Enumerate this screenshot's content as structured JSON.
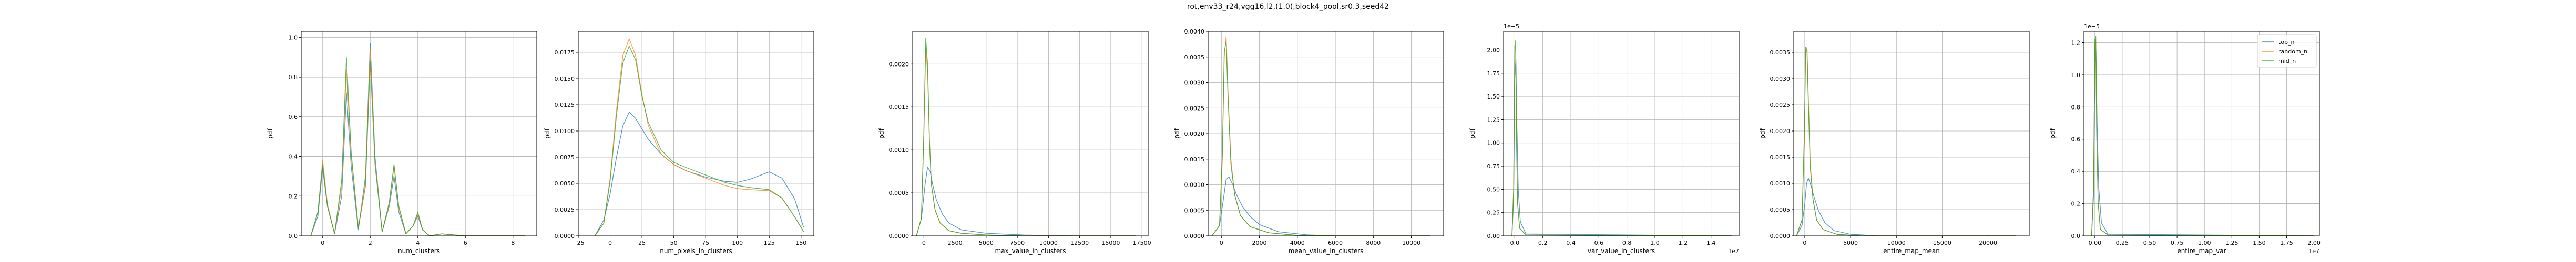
{
  "figure": {
    "title": "rot,env33_r24,vgg16,l2,(1.0),block4_pool,sr0.3,seed42"
  },
  "colors": {
    "top_n": "#1f77b4",
    "random_n": "#ff7f0e",
    "mid_n": "#2ca02c"
  },
  "legend": {
    "placement": "upper-right of last panel",
    "entries": [
      "top_n",
      "random_n",
      "mid_n"
    ]
  },
  "chart_data": [
    {
      "type": "line",
      "xlabel": "num_clusters",
      "ylabel": "pdf",
      "xlim": [
        -0.9,
        9.0
      ],
      "ylim": [
        0,
        1.03
      ],
      "xticks": [
        0,
        2,
        4,
        6,
        8
      ],
      "xticklabels": [
        "0",
        "2",
        "4",
        "6",
        "8"
      ],
      "yticks": [
        0.0,
        0.2,
        0.4,
        0.6,
        0.8,
        1.0
      ],
      "yticklabels": [
        "0.0",
        "0.2",
        "0.4",
        "0.6",
        "0.8",
        "1.0"
      ],
      "grid": true,
      "series": [
        {
          "key": "top_n",
          "x": [
            -0.5,
            -0.2,
            0,
            0.2,
            0.5,
            0.8,
            1,
            1.2,
            1.5,
            1.8,
            2,
            2.2,
            2.5,
            2.8,
            3,
            3.2,
            3.5,
            3.8,
            4,
            4.2,
            4.5,
            5,
            6,
            8.5
          ],
          "y": [
            0,
            0.1,
            0.34,
            0.15,
            0.01,
            0.2,
            0.72,
            0.35,
            0.03,
            0.3,
            0.97,
            0.4,
            0.02,
            0.15,
            0.3,
            0.12,
            0.01,
            0.05,
            0.1,
            0.03,
            0,
            0.01,
            0,
            0
          ]
        },
        {
          "key": "random_n",
          "x": [
            -0.5,
            -0.2,
            0,
            0.2,
            0.5,
            0.8,
            1,
            1.2,
            1.5,
            1.8,
            2,
            2.2,
            2.5,
            2.8,
            3,
            3.2,
            3.5,
            3.8,
            4,
            4.2,
            4.5,
            5,
            6,
            8.5
          ],
          "y": [
            0,
            0.12,
            0.38,
            0.16,
            0.01,
            0.25,
            0.84,
            0.4,
            0.04,
            0.28,
            0.94,
            0.38,
            0.02,
            0.16,
            0.35,
            0.14,
            0.01,
            0.05,
            0.11,
            0.03,
            0,
            0.01,
            0,
            0
          ]
        },
        {
          "key": "mid_n",
          "x": [
            -0.5,
            -0.2,
            0,
            0.2,
            0.5,
            0.8,
            1,
            1.2,
            1.5,
            1.8,
            2,
            2.2,
            2.5,
            2.8,
            3,
            3.2,
            3.5,
            3.8,
            4,
            4.2,
            4.5,
            5,
            6,
            8.5
          ],
          "y": [
            0,
            0.12,
            0.36,
            0.15,
            0.01,
            0.28,
            0.9,
            0.42,
            0.04,
            0.25,
            0.88,
            0.36,
            0.02,
            0.17,
            0.36,
            0.15,
            0.01,
            0.05,
            0.12,
            0.03,
            0,
            0.01,
            0,
            0
          ]
        }
      ]
    },
    {
      "type": "line",
      "xlabel": "num_pixels_in_clusters",
      "ylabel": "pdf",
      "xlim": [
        -25,
        160
      ],
      "ylim": [
        0,
        0.0195
      ],
      "xticks": [
        -25,
        0,
        25,
        50,
        75,
        100,
        125,
        150
      ],
      "xticklabels": [
        "−25",
        "0",
        "25",
        "50",
        "75",
        "100",
        "125",
        "150"
      ],
      "yticks": [
        0.0,
        0.0025,
        0.005,
        0.0075,
        0.01,
        0.0125,
        0.015,
        0.0175
      ],
      "yticklabels": [
        "0.0000",
        "0.0025",
        "0.0050",
        "0.0075",
        "0.0100",
        "0.0125",
        "0.0150",
        "0.0175"
      ],
      "grid": true,
      "series": [
        {
          "key": "top_n",
          "x": [
            -12,
            -5,
            0,
            5,
            10,
            15,
            20,
            30,
            40,
            50,
            60,
            75,
            90,
            100,
            110,
            125,
            135,
            145,
            152
          ],
          "y": [
            0,
            0.0015,
            0.004,
            0.0075,
            0.0105,
            0.0118,
            0.0112,
            0.0092,
            0.0078,
            0.0068,
            0.0062,
            0.0056,
            0.0052,
            0.0051,
            0.0054,
            0.0061,
            0.0055,
            0.0035,
            0.0008
          ]
        },
        {
          "key": "random_n",
          "x": [
            -12,
            -5,
            0,
            5,
            10,
            15,
            20,
            25,
            30,
            40,
            50,
            60,
            75,
            90,
            100,
            110,
            125,
            135,
            145,
            152
          ],
          "y": [
            0,
            0.0012,
            0.0055,
            0.012,
            0.0172,
            0.0188,
            0.0172,
            0.0135,
            0.0105,
            0.0078,
            0.0068,
            0.0062,
            0.0055,
            0.0048,
            0.0045,
            0.0044,
            0.0043,
            0.0036,
            0.0018,
            0.0004
          ]
        },
        {
          "key": "mid_n",
          "x": [
            -12,
            -5,
            0,
            5,
            10,
            15,
            20,
            25,
            30,
            40,
            50,
            60,
            75,
            90,
            100,
            110,
            125,
            135,
            145,
            152
          ],
          "y": [
            0,
            0.0012,
            0.0052,
            0.0115,
            0.0165,
            0.0181,
            0.0168,
            0.0133,
            0.0108,
            0.0082,
            0.007,
            0.0065,
            0.0058,
            0.0051,
            0.0048,
            0.0046,
            0.0044,
            0.0036,
            0.0018,
            0.0004
          ]
        }
      ]
    },
    {
      "type": "line",
      "xlabel": "max_value_in_clusters",
      "ylabel": "pdf",
      "xlim": [
        -900,
        18000
      ],
      "ylim": [
        0,
        0.00238
      ],
      "xticks": [
        0,
        2500,
        5000,
        7500,
        10000,
        12500,
        15000,
        17500
      ],
      "xticklabels": [
        "0",
        "2500",
        "5000",
        "7500",
        "10000",
        "12500",
        "15000",
        "17500"
      ],
      "yticks": [
        0.0,
        0.0005,
        0.001,
        0.0015,
        0.002
      ],
      "yticklabels": [
        "0.0000",
        "0.0005",
        "0.0010",
        "0.0015",
        "0.0020"
      ],
      "grid": true,
      "series": [
        {
          "key": "top_n",
          "x": [
            -600,
            -200,
            100,
            300,
            500,
            700,
            1000,
            1500,
            2000,
            3000,
            5000,
            8000,
            12000,
            17000
          ],
          "y": [
            0,
            0.0002,
            0.0006,
            0.0008,
            0.00075,
            0.0006,
            0.00042,
            0.00025,
            0.00015,
            7e-05,
            3e-05,
            1e-05,
            0,
            0
          ]
        },
        {
          "key": "random_n",
          "x": [
            -600,
            -200,
            0,
            150,
            300,
            450,
            600,
            900,
            1300,
            2000,
            3000,
            5000,
            8000,
            12000,
            17000
          ],
          "y": [
            0,
            0.0002,
            0.0012,
            0.0022,
            0.0019,
            0.0011,
            0.0006,
            0.0003,
            0.00015,
            6e-05,
            3e-05,
            1e-05,
            0,
            0,
            0
          ]
        },
        {
          "key": "mid_n",
          "x": [
            -600,
            -200,
            0,
            150,
            300,
            450,
            600,
            900,
            1300,
            2000,
            3000,
            5000,
            8000,
            12000,
            17000
          ],
          "y": [
            0,
            0.0002,
            0.0012,
            0.0023,
            0.002,
            0.0011,
            0.0006,
            0.0003,
            0.00015,
            6e-05,
            3e-05,
            1e-05,
            0,
            0,
            0
          ]
        }
      ]
    },
    {
      "type": "line",
      "xlabel": "mean_value_in_clusters",
      "ylabel": "pdf",
      "xlim": [
        -700,
        11700
      ],
      "ylim": [
        0,
        0.004
      ],
      "xticks": [
        0,
        2000,
        4000,
        6000,
        8000,
        10000
      ],
      "xticklabels": [
        "0",
        "2000",
        "4000",
        "6000",
        "8000",
        "10000"
      ],
      "yticks": [
        0.0,
        0.0005,
        0.001,
        0.0015,
        0.002,
        0.0025,
        0.003,
        0.0035,
        0.004
      ],
      "yticklabels": [
        "0.0000",
        "0.0005",
        "0.0010",
        "0.0015",
        "0.0020",
        "0.0025",
        "0.0030",
        "0.0035",
        "0.0040"
      ],
      "grid": true,
      "series": [
        {
          "key": "top_n",
          "x": [
            -500,
            -100,
            100,
            250,
            400,
            600,
            800,
            1100,
            1500,
            2000,
            3000,
            4500,
            6000,
            8000,
            11000
          ],
          "y": [
            0,
            0.0002,
            0.0007,
            0.0011,
            0.00115,
            0.001,
            0.0008,
            0.00058,
            0.00038,
            0.00022,
            8e-05,
            2e-05,
            0,
            0,
            0
          ]
        },
        {
          "key": "random_n",
          "x": [
            -500,
            -100,
            50,
            150,
            250,
            350,
            500,
            700,
            1000,
            1500,
            2500,
            4000,
            6000,
            11000
          ],
          "y": [
            0,
            0.0002,
            0.0015,
            0.0035,
            0.0039,
            0.0028,
            0.0015,
            0.0008,
            0.0004,
            0.00018,
            6e-05,
            1e-05,
            0,
            0
          ]
        },
        {
          "key": "mid_n",
          "x": [
            -500,
            -100,
            50,
            150,
            250,
            350,
            500,
            700,
            1000,
            1500,
            2500,
            4000,
            6000,
            11000
          ],
          "y": [
            0,
            0.0002,
            0.0016,
            0.0036,
            0.0038,
            0.0027,
            0.0014,
            0.0008,
            0.0004,
            0.00018,
            6e-05,
            1e-05,
            0,
            0
          ]
        }
      ]
    },
    {
      "type": "line",
      "xlabel": "var_value_in_clusters",
      "ylabel": "pdf",
      "offset_y": "1e−5",
      "offset_x": "1e7",
      "xlim": [
        -0.08,
        1.6
      ],
      "ylim": [
        0,
        2.2
      ],
      "xticks": [
        0.0,
        0.2,
        0.4,
        0.6,
        0.8,
        1.0,
        1.2,
        1.4
      ],
      "xticklabels": [
        "0.0",
        "0.2",
        "0.4",
        "0.6",
        "0.8",
        "1.0",
        "1.2",
        "1.4"
      ],
      "yticks": [
        0.0,
        0.25,
        0.5,
        0.75,
        1.0,
        1.25,
        1.5,
        1.75,
        2.0
      ],
      "yticklabels": [
        "0.00",
        "0.25",
        "0.50",
        "0.75",
        "1.00",
        "1.25",
        "1.50",
        "1.75",
        "2.00"
      ],
      "grid": true,
      "series": [
        {
          "key": "top_n",
          "x": [
            -0.02,
            -0.008,
            0,
            0.008,
            0.015,
            0.025,
            0.04,
            0.08,
            1.55
          ],
          "y": [
            0,
            0.4,
            1.7,
            1.9,
            1.2,
            0.5,
            0.15,
            0.02,
            0
          ]
        },
        {
          "key": "random_n",
          "x": [
            -0.02,
            -0.008,
            0,
            0.006,
            0.012,
            0.02,
            0.035,
            0.08,
            1.55
          ],
          "y": [
            0,
            0.5,
            2.0,
            2.05,
            1.1,
            0.35,
            0.08,
            0.01,
            0
          ]
        },
        {
          "key": "mid_n",
          "x": [
            -0.02,
            -0.008,
            0,
            0.006,
            0.012,
            0.02,
            0.035,
            0.08,
            1.55
          ],
          "y": [
            0,
            0.5,
            2.05,
            2.1,
            1.1,
            0.35,
            0.08,
            0.01,
            0
          ]
        }
      ]
    },
    {
      "type": "line",
      "xlabel": "entire_map_mean",
      "ylabel": "pdf",
      "xlim": [
        -1200,
        24500
      ],
      "ylim": [
        0,
        0.0039
      ],
      "xticks": [
        0,
        5000,
        10000,
        15000,
        20000
      ],
      "xticklabels": [
        "0",
        "5000",
        "10000",
        "15000",
        "20000"
      ],
      "yticks": [
        0.0,
        0.0005,
        0.001,
        0.0015,
        0.002,
        0.0025,
        0.003,
        0.0035
      ],
      "yticklabels": [
        "0.0000",
        "0.0005",
        "0.0010",
        "0.0015",
        "0.0020",
        "0.0025",
        "0.0030",
        "0.0035"
      ],
      "grid": true,
      "series": [
        {
          "key": "top_n",
          "x": [
            -900,
            -300,
            0,
            200,
            400,
            700,
            1000,
            1500,
            2200,
            3200,
            5000,
            8000,
            12000,
            23000
          ],
          "y": [
            0,
            0.0002,
            0.0006,
            0.001,
            0.0011,
            0.00095,
            0.00075,
            0.00048,
            0.00025,
            0.0001,
            3e-05,
            0,
            0,
            0
          ]
        },
        {
          "key": "random_n",
          "x": [
            -900,
            -300,
            -50,
            100,
            250,
            400,
            600,
            900,
            1300,
            2000,
            3500,
            6000,
            12000,
            23000
          ],
          "y": [
            0,
            0.0003,
            0.0018,
            0.0035,
            0.0036,
            0.0026,
            0.0014,
            0.0007,
            0.0003,
            0.00012,
            3e-05,
            0,
            0,
            0
          ]
        },
        {
          "key": "mid_n",
          "x": [
            -900,
            -300,
            -50,
            100,
            250,
            400,
            600,
            900,
            1300,
            2000,
            3500,
            6000,
            12000,
            23000
          ],
          "y": [
            0,
            0.0003,
            0.0019,
            0.0036,
            0.0035,
            0.0025,
            0.0013,
            0.0007,
            0.0003,
            0.00012,
            3e-05,
            0,
            0,
            0
          ]
        }
      ]
    },
    {
      "type": "line",
      "xlabel": "entire_map_var",
      "ylabel": "pdf",
      "offset_y": "1e−5",
      "offset_x": "1e7",
      "xlim": [
        -0.1,
        2.05
      ],
      "ylim": [
        0,
        1.27
      ],
      "xticks": [
        0.0,
        0.25,
        0.5,
        0.75,
        1.0,
        1.25,
        1.5,
        1.75,
        2.0
      ],
      "xticklabels": [
        "0.00",
        "0.25",
        "0.50",
        "0.75",
        "1.00",
        "1.25",
        "1.50",
        "1.75",
        "2.00"
      ],
      "yticks": [
        0.0,
        0.2,
        0.4,
        0.6,
        0.8,
        1.0,
        1.2
      ],
      "yticklabels": [
        "0.0",
        "0.2",
        "0.4",
        "0.6",
        "0.8",
        "1.0",
        "1.2"
      ],
      "grid": true,
      "series": [
        {
          "key": "top_n",
          "x": [
            -0.03,
            -0.012,
            0,
            0.01,
            0.02,
            0.035,
            0.06,
            0.12,
            2.0
          ],
          "y": [
            0,
            0.25,
            1.05,
            1.15,
            0.7,
            0.3,
            0.08,
            0.01,
            0
          ]
        },
        {
          "key": "random_n",
          "x": [
            -0.03,
            -0.012,
            0,
            0.008,
            0.016,
            0.03,
            0.05,
            0.12,
            2.0
          ],
          "y": [
            0,
            0.3,
            1.2,
            1.22,
            0.65,
            0.2,
            0.04,
            0.005,
            0
          ]
        },
        {
          "key": "mid_n",
          "x": [
            -0.03,
            -0.012,
            0,
            0.008,
            0.016,
            0.03,
            0.05,
            0.12,
            2.0
          ],
          "y": [
            0,
            0.3,
            1.22,
            1.24,
            0.66,
            0.2,
            0.04,
            0.005,
            0
          ]
        }
      ]
    }
  ]
}
